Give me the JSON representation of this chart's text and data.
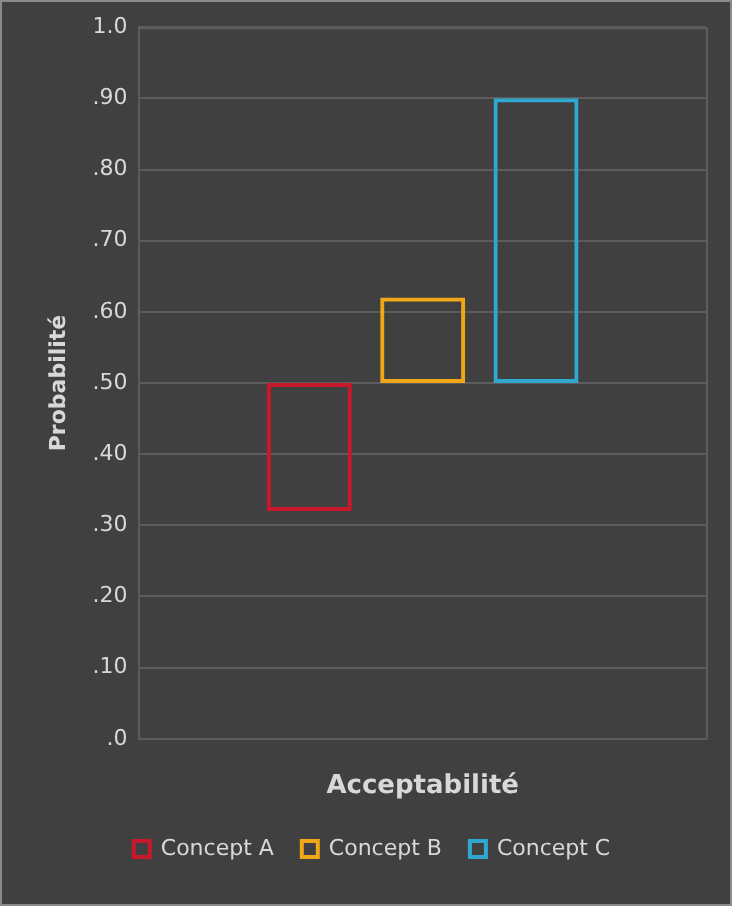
{
  "chart_data": {
    "type": "bar",
    "xlabel": "Acceptabilité",
    "ylabel": "Probabilité",
    "categories": [
      null
    ],
    "series": [
      {
        "name": "Concept A",
        "color": "#c8182c",
        "values": [
          0.18
        ],
        "base": [
          0.32
        ]
      },
      {
        "name": "Concept B",
        "color": "#f0a818",
        "values": [
          0.12
        ],
        "base": [
          0.5
        ]
      },
      {
        "name": "Concept C",
        "color": "#30a8d0",
        "values": [
          0.4
        ],
        "base": [
          0.5
        ]
      }
    ],
    "ylim": [
      0,
      1
    ],
    "yticks": [
      {
        "value": 0,
        "label": ".0"
      },
      {
        "value": 0.1,
        "label": ".10"
      },
      {
        "value": 0.2,
        "label": ".20"
      },
      {
        "value": 0.3,
        "label": ".30"
      },
      {
        "value": 0.4,
        "label": ".40"
      },
      {
        "value": 0.5,
        "label": ".50"
      },
      {
        "value": 0.6,
        "label": ".60"
      },
      {
        "value": 0.7,
        "label": ".70"
      },
      {
        "value": 0.8,
        "label": ".80"
      },
      {
        "value": 0.9,
        "label": ".90"
      },
      {
        "value": 1,
        "label": "1.0"
      }
    ],
    "grid": "y",
    "legend": "bottom"
  }
}
